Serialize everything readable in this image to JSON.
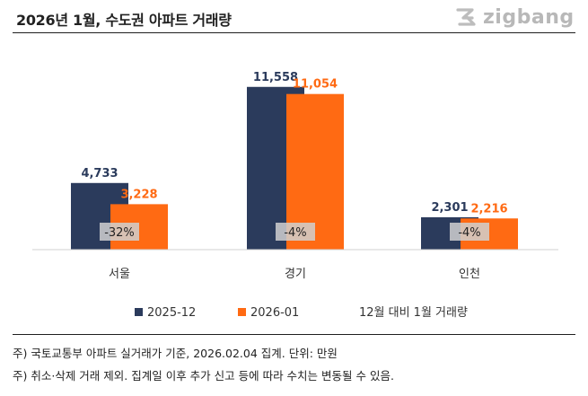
{
  "title": "2026년 1월, 수도권 아파트 거래량",
  "brand": "zigbang",
  "colors": {
    "series1": "#2b3b5c",
    "series2": "#ff6a13",
    "label_box": "#d0d0d0"
  },
  "chart_data": {
    "type": "bar",
    "categories": [
      "서울",
      "경기",
      "인천"
    ],
    "series": [
      {
        "name": "2025-12",
        "values": [
          4733,
          11558,
          2301
        ]
      },
      {
        "name": "2026-01",
        "values": [
          3228,
          11054,
          2216
        ]
      }
    ],
    "value_labels": [
      [
        "4,733",
        "11,558",
        "2,301"
      ],
      [
        "3,228",
        "11,054",
        "2,216"
      ]
    ],
    "change_labels": [
      "-32%",
      "-4%",
      "-4%"
    ],
    "legend_note": "12월 대비 1월 거래량",
    "ylim": [
      0,
      12500
    ]
  },
  "notes": [
    "주) 국토교통부 아파트 실거래가 기준, 2026.02.04 집계. 단위: 만원",
    "주) 취소·삭제 거래 제외. 집계일 이후 추가 신고 등에 따라 수치는 변동될 수 있음."
  ]
}
